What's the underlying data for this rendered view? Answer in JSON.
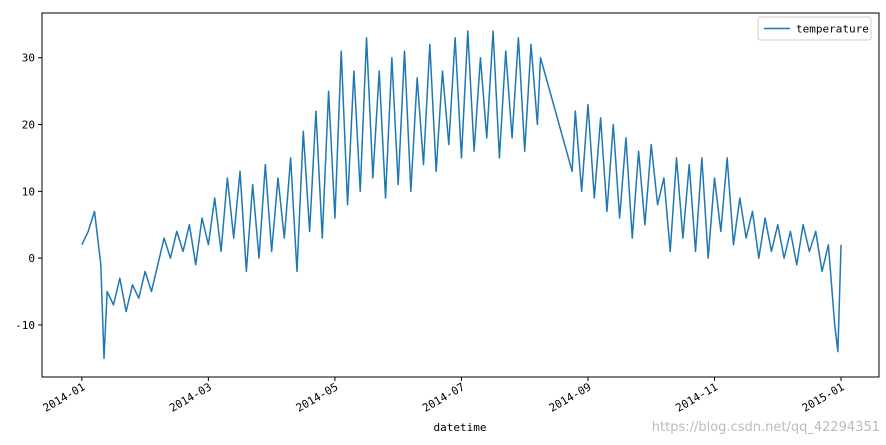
{
  "chart_data": {
    "type": "line",
    "x_label": "datetime",
    "watermark": "https://blog.csdn.net/qq_42294351",
    "xlim": [
      -0.63,
      12.6
    ],
    "xticks": [
      {
        "value": 0,
        "label": "2014-01"
      },
      {
        "value": 2,
        "label": "2014-03"
      },
      {
        "value": 4,
        "label": "2014-05"
      },
      {
        "value": 6,
        "label": "2014-07"
      },
      {
        "value": 8,
        "label": "2014-09"
      },
      {
        "value": 10,
        "label": "2014-11"
      },
      {
        "value": 12,
        "label": "2015-01"
      }
    ],
    "ylim": [
      -17.8,
      36.7
    ],
    "yticks": [
      -10,
      0,
      10,
      20,
      30
    ],
    "legend": "upper right",
    "x": [
      0.0,
      0.1,
      0.2,
      0.3,
      0.35,
      0.4,
      0.5,
      0.6,
      0.7,
      0.8,
      0.9,
      1.0,
      1.1,
      1.2,
      1.3,
      1.4,
      1.5,
      1.6,
      1.7,
      1.8,
      1.9,
      2.0,
      2.1,
      2.2,
      2.3,
      2.4,
      2.5,
      2.6,
      2.7,
      2.8,
      2.9,
      3.0,
      3.1,
      3.2,
      3.3,
      3.4,
      3.5,
      3.6,
      3.7,
      3.8,
      3.9,
      4.0,
      4.1,
      4.2,
      4.3,
      4.4,
      4.5,
      4.6,
      4.7,
      4.8,
      4.9,
      5.0,
      5.1,
      5.2,
      5.3,
      5.4,
      5.5,
      5.6,
      5.7,
      5.8,
      5.9,
      6.0,
      6.1,
      6.2,
      6.3,
      6.4,
      6.5,
      6.6,
      6.7,
      6.8,
      6.9,
      7.0,
      7.1,
      7.2,
      7.25,
      7.75,
      7.8,
      7.9,
      8.0,
      8.1,
      8.2,
      8.3,
      8.4,
      8.5,
      8.6,
      8.7,
      8.8,
      8.9,
      9.0,
      9.1,
      9.2,
      9.3,
      9.4,
      9.5,
      9.6,
      9.7,
      9.8,
      9.9,
      10.0,
      10.1,
      10.2,
      10.3,
      10.4,
      10.5,
      10.6,
      10.7,
      10.8,
      10.9,
      11.0,
      11.1,
      11.2,
      11.3,
      11.4,
      11.5,
      11.6,
      11.7,
      11.8,
      11.9,
      11.95,
      12.0
    ],
    "series": [
      {
        "name": "temperature",
        "color": "#1f77b4",
        "values": [
          2,
          4,
          7,
          -1,
          -15,
          -5,
          -7,
          -3,
          -8,
          -4,
          -6,
          -2,
          -5,
          -1,
          3,
          0,
          4,
          1,
          5,
          -1,
          6,
          2,
          9,
          1,
          12,
          3,
          13,
          -2,
          11,
          0,
          14,
          1,
          12,
          3,
          15,
          -2,
          19,
          4,
          22,
          3,
          25,
          6,
          31,
          8,
          28,
          10,
          33,
          12,
          28,
          9,
          30,
          11,
          31,
          10,
          27,
          14,
          32,
          13,
          28,
          17,
          33,
          15,
          34,
          16,
          30,
          18,
          34,
          15,
          31,
          18,
          33,
          16,
          32,
          20,
          30,
          13,
          22,
          10,
          23,
          9,
          21,
          7,
          20,
          6,
          18,
          3,
          16,
          5,
          17,
          8,
          12,
          1,
          15,
          3,
          14,
          1,
          15,
          0,
          12,
          4,
          15,
          2,
          9,
          3,
          7,
          0,
          6,
          1,
          5,
          0,
          4,
          -1,
          5,
          1,
          4,
          -2,
          2,
          -10,
          -14,
          2
        ]
      }
    ]
  }
}
